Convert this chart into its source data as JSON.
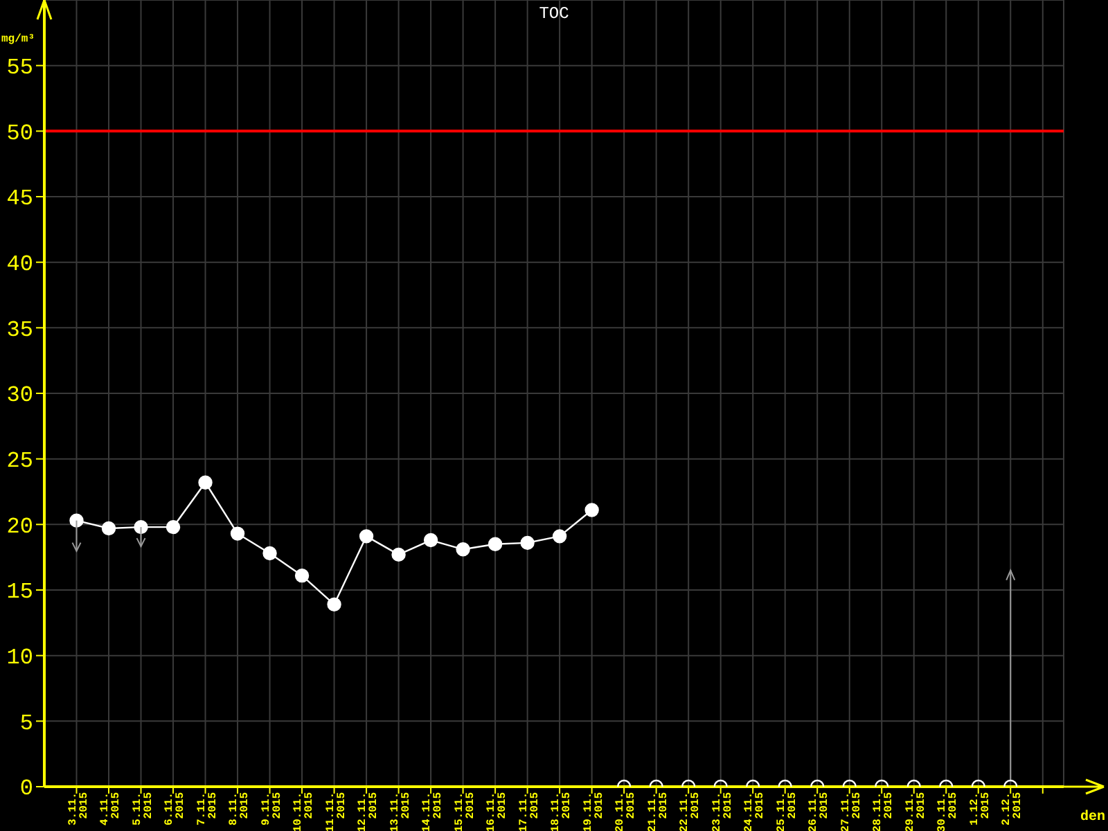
{
  "chart_data": {
    "type": "line",
    "title": "TOC",
    "ylabel": "mg/m³",
    "xlabel": "den",
    "categories": [
      "3.11. 2015",
      "4.11. 2015",
      "5.11. 2015",
      "6.11. 2015",
      "7.11. 2015",
      "8.11. 2015",
      "9.11. 2015",
      "10.11. 2015",
      "11.11. 2015",
      "12.11. 2015",
      "13.11. 2015",
      "14.11. 2015",
      "15.11. 2015",
      "16.11. 2015",
      "17.11. 2015",
      "18.11. 2015",
      "19.11. 2015",
      "20.11. 2015",
      "21.11. 2015",
      "22.11. 2015",
      "23.11. 2015",
      "24.11. 2015",
      "25.11. 2015",
      "26.11. 2015",
      "27.11. 2015",
      "28.11. 2015",
      "29.11. 2015",
      "30.11. 2015",
      "1.12. 2015",
      "2.12. 2015"
    ],
    "series": [
      {
        "color": "#ffffff",
        "values": [
          20.3,
          19.7,
          19.8,
          19.8,
          23.2,
          19.3,
          17.8,
          16.1,
          13.9,
          19.1,
          17.7,
          18.8,
          18.1,
          18.5,
          18.6,
          19.1,
          21.1,
          null,
          null,
          null,
          null,
          null,
          null,
          null,
          null,
          null,
          null,
          null,
          null,
          null
        ]
      },
      {
        "type": "scatter",
        "color": "#ffffff",
        "values": [
          null,
          null,
          null,
          null,
          null,
          null,
          null,
          null,
          null,
          null,
          null,
          null,
          null,
          null,
          null,
          null,
          null,
          0,
          0,
          0,
          0,
          0,
          0,
          0,
          0,
          0,
          0,
          0,
          0,
          0
        ]
      }
    ],
    "ylim": [
      0,
      60
    ],
    "yticks": [
      0,
      5,
      10,
      15,
      20,
      25,
      30,
      35,
      40,
      45,
      50,
      55
    ],
    "ref_lines": [
      {
        "axis": "y",
        "value": 50,
        "color": "#ff0000"
      }
    ],
    "grid": true,
    "marker": "circle"
  }
}
